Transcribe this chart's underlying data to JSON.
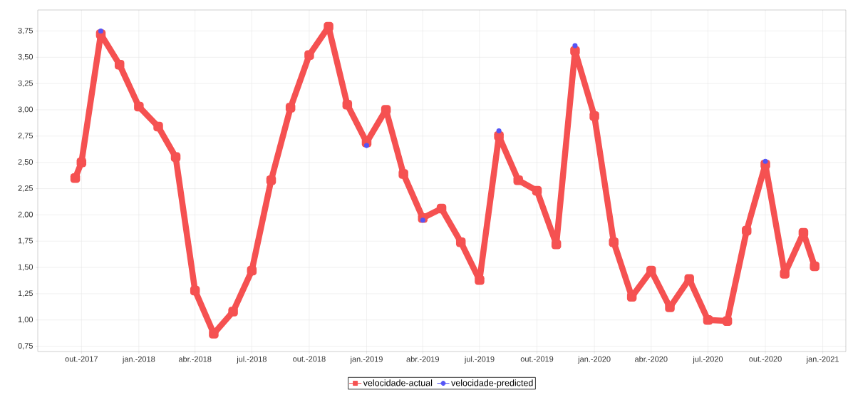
{
  "chart_data": {
    "type": "line",
    "x": [
      "2017-09-21",
      "2017-10-01",
      "2017-11-01",
      "2017-12-01",
      "2018-01-01",
      "2018-02-01",
      "2018-03-01",
      "2018-04-01",
      "2018-05-01",
      "2018-06-01",
      "2018-07-01",
      "2018-08-01",
      "2018-09-01",
      "2018-10-01",
      "2018-11-01",
      "2018-12-01",
      "2019-01-01",
      "2019-02-01",
      "2019-03-01",
      "2019-04-01",
      "2019-05-01",
      "2019-06-01",
      "2019-07-01",
      "2019-08-01",
      "2019-09-01",
      "2019-10-01",
      "2019-11-01",
      "2019-12-01",
      "2020-01-01",
      "2020-02-01",
      "2020-03-01",
      "2020-04-01",
      "2020-05-01",
      "2020-06-01",
      "2020-07-01",
      "2020-08-01",
      "2020-09-01",
      "2020-10-01",
      "2020-11-01",
      "2020-12-01",
      "2020-12-19"
    ],
    "series": [
      {
        "name": "velocidade-actual",
        "color": "#f55151",
        "marker": "square",
        "values": [
          2.35,
          2.5,
          3.72,
          3.43,
          3.03,
          2.84,
          2.55,
          1.28,
          0.87,
          1.08,
          1.47,
          2.33,
          3.02,
          3.52,
          3.79,
          3.05,
          2.69,
          3.0,
          2.39,
          1.97,
          2.06,
          1.74,
          1.38,
          2.75,
          2.33,
          2.23,
          1.72,
          3.56,
          2.94,
          1.74,
          1.22,
          1.47,
          1.12,
          1.39,
          1.0,
          0.99,
          1.85,
          2.48,
          1.44,
          1.83,
          1.51
        ]
      },
      {
        "name": "velocidade-predicted",
        "type": "scatter",
        "color": "#5555f5",
        "marker": "circle",
        "values": [
          null,
          null,
          3.75,
          null,
          null,
          null,
          null,
          null,
          null,
          null,
          null,
          null,
          null,
          null,
          null,
          null,
          2.66,
          null,
          null,
          1.95,
          null,
          null,
          null,
          2.8,
          null,
          null,
          null,
          3.61,
          null,
          null,
          null,
          null,
          null,
          null,
          null,
          null,
          null,
          2.51,
          null,
          null,
          null
        ]
      }
    ],
    "xlim": [
      "2017-07-23",
      "2021-02-07"
    ],
    "xticks": [
      {
        "value": "2017-10-01",
        "label": "out.-2017"
      },
      {
        "value": "2018-01-01",
        "label": "jan.-2018"
      },
      {
        "value": "2018-04-01",
        "label": "abr.-2018"
      },
      {
        "value": "2018-07-01",
        "label": "jul.-2018"
      },
      {
        "value": "2018-10-01",
        "label": "out.-2018"
      },
      {
        "value": "2019-01-01",
        "label": "jan.-2019"
      },
      {
        "value": "2019-04-01",
        "label": "abr.-2019"
      },
      {
        "value": "2019-07-01",
        "label": "jul.-2019"
      },
      {
        "value": "2019-10-01",
        "label": "out.-2019"
      },
      {
        "value": "2020-01-01",
        "label": "jan.-2020"
      },
      {
        "value": "2020-04-01",
        "label": "abr.-2020"
      },
      {
        "value": "2020-07-01",
        "label": "jul.-2020"
      },
      {
        "value": "2020-10-01",
        "label": "out.-2020"
      },
      {
        "value": "2021-01-01",
        "label": "jan.-2021"
      }
    ],
    "ylim": [
      0.7,
      3.95
    ],
    "yticks": [
      {
        "value": 0.75,
        "label": "0,75"
      },
      {
        "value": 1.0,
        "label": "1,00"
      },
      {
        "value": 1.25,
        "label": "1,25"
      },
      {
        "value": 1.5,
        "label": "1,50"
      },
      {
        "value": 1.75,
        "label": "1,75"
      },
      {
        "value": 2.0,
        "label": "2,00"
      },
      {
        "value": 2.25,
        "label": "2,25"
      },
      {
        "value": 2.5,
        "label": "2,50"
      },
      {
        "value": 2.75,
        "label": "2,75"
      },
      {
        "value": 3.0,
        "label": "3,00"
      },
      {
        "value": 3.25,
        "label": "3,25"
      },
      {
        "value": 3.5,
        "label": "3,50"
      },
      {
        "value": 3.75,
        "label": "3,75"
      }
    ],
    "grid": true,
    "legend": "bottom"
  }
}
